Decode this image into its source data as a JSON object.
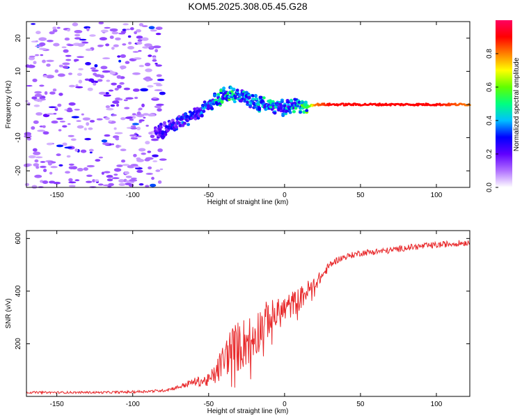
{
  "title": "KOM5.2025.308.05.45.G28",
  "colors": {
    "signal": "#e8282a",
    "frame": "#000000",
    "spectrum_strong": "#2a00d0",
    "spectrum_weak": "#b78ef0"
  },
  "chart_data": [
    {
      "type": "heatmap",
      "xlabel": "Height of straight line (km)",
      "ylabel": "Frequency (Hz)",
      "xlim": [
        -170,
        122
      ],
      "ylim": [
        -25,
        25
      ],
      "xticks": [
        -150,
        -100,
        -50,
        0,
        50,
        100
      ],
      "yticks": [
        -20,
        -10,
        0,
        10,
        20
      ],
      "colorbar": {
        "label": "Normalized spectral amplitude",
        "range": [
          0,
          1
        ],
        "ticks": [
          0.0,
          0.2,
          0.4,
          0.6,
          0.8
        ],
        "tick_labels": [
          "0.0",
          "0.2",
          "0.4",
          "0.6",
          "0.8"
        ],
        "colormap": [
          "#ffffff",
          "#b070ff",
          "#6000ff",
          "#0000ff",
          "#00c0ff",
          "#00ff80",
          "#60ff00",
          "#ffff00",
          "#ff8000",
          "#ff0000",
          "#ff0060"
        ]
      },
      "ridge": {
        "x": [
          -85,
          -75,
          -65,
          -55,
          -45,
          -40,
          -35,
          -30,
          -25,
          -20,
          -15,
          -10,
          -5,
          0,
          5,
          10,
          15,
          20,
          30,
          40,
          60,
          80,
          100,
          110,
          122
        ],
        "freq": [
          -9,
          -7,
          -5,
          -2,
          1,
          3,
          3,
          3,
          2,
          0.5,
          0,
          -0.5,
          -1,
          -1,
          -0.5,
          -0.5,
          -0.5,
          0,
          0,
          0,
          0,
          0,
          0,
          0,
          0
        ],
        "amplitude": [
          0.2,
          0.25,
          0.3,
          0.3,
          0.4,
          0.45,
          0.45,
          0.4,
          0.35,
          0.35,
          0.4,
          0.4,
          0.35,
          0.35,
          0.4,
          0.45,
          0.5,
          0.8,
          0.9,
          0.9,
          0.9,
          0.9,
          0.9,
          0.85,
          0.8
        ]
      },
      "noise_region": {
        "x": [
          -170,
          -80
        ],
        "freq": [
          -25,
          25
        ],
        "amplitude": [
          0.05,
          0.15
        ]
      }
    },
    {
      "type": "line",
      "xlabel": "Height of straight line (km)",
      "ylabel": "SNR (v/v)",
      "xlim": [
        -170,
        122
      ],
      "ylim": [
        0,
        630
      ],
      "xticks": [
        -150,
        -100,
        -50,
        0,
        50,
        100
      ],
      "yticks": [
        200,
        400,
        600
      ],
      "series": [
        {
          "name": "SNR",
          "x": [
            -170,
            -150,
            -120,
            -100,
            -80,
            -70,
            -60,
            -50,
            -45,
            -40,
            -35,
            -30,
            -25,
            -20,
            -15,
            -10,
            -5,
            0,
            5,
            10,
            15,
            20,
            25,
            30,
            35,
            40,
            50,
            60,
            70,
            80,
            90,
            100,
            110,
            122
          ],
          "values": [
            15,
            15,
            15,
            17,
            22,
            35,
            55,
            60,
            90,
            140,
            180,
            190,
            210,
            230,
            270,
            300,
            310,
            330,
            350,
            370,
            400,
            430,
            460,
            500,
            520,
            530,
            545,
            550,
            555,
            565,
            570,
            575,
            580,
            585
          ],
          "noise_amplitude": [
            4,
            4,
            4,
            5,
            5,
            8,
            15,
            25,
            45,
            70,
            90,
            100,
            100,
            95,
            80,
            70,
            60,
            55,
            50,
            45,
            40,
            30,
            20,
            15,
            12,
            12,
            12,
            12,
            12,
            12,
            12,
            12,
            12,
            12
          ]
        }
      ]
    }
  ]
}
